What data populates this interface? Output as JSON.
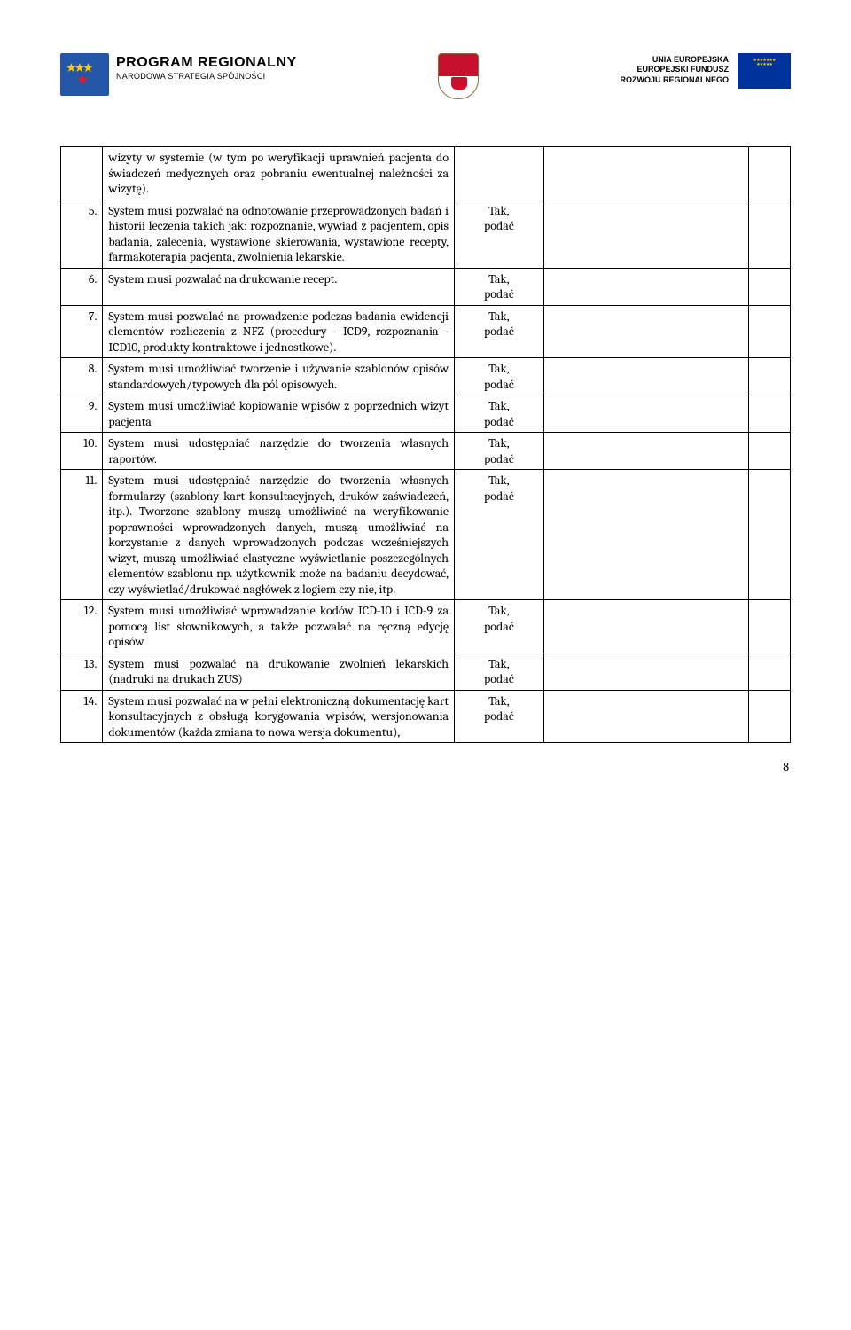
{
  "header": {
    "program_title": "PROGRAM REGIONALNY",
    "program_sub": "NARODOWA STRATEGIA SPÓJNOŚCI",
    "eu_line1": "UNIA EUROPEJSKA",
    "eu_line2": "EUROPEJSKI FUNDUSZ",
    "eu_line3": "ROZWOJU REGIONALNEGO"
  },
  "rows": [
    {
      "num": "",
      "desc": "wizyty w systemie (w tym po weryfikacji uprawnień pacjenta do świadczeń medycznych oraz pobraniu ewentualnej należności za wizytę).",
      "val": ""
    },
    {
      "num": "5.",
      "desc": "System musi pozwalać na odnotowanie przeprowadzonych badań i historii leczenia takich jak: rozpoznanie, wywiad z pacjentem, opis badania, zalecenia, wystawione skierowania, wystawione recepty, farmakoterapia pacjenta, zwolnienia lekarskie.",
      "val": "Tak, podać"
    },
    {
      "num": "6.",
      "desc": "System musi pozwalać na drukowanie recept.",
      "val": "Tak, podać"
    },
    {
      "num": "7.",
      "desc": "System musi pozwalać na prowadzenie podczas badania ewidencji elementów rozliczenia z NFZ (procedury - ICD9, rozpoznania - ICD10, produkty kontraktowe i jednostkowe).",
      "val": "Tak, podać"
    },
    {
      "num": "8.",
      "desc": "System musi umożliwiać tworzenie i używanie szablonów opisów standardowych/typowych dla pól opisowych.",
      "val": "Tak, podać"
    },
    {
      "num": "9.",
      "desc": "System musi umożliwiać kopiowanie wpisów z poprzednich wizyt pacjenta",
      "val": "Tak, podać"
    },
    {
      "num": "10.",
      "desc": "System musi udostępniać narzędzie do tworzenia własnych raportów.",
      "val": "Tak, podać"
    },
    {
      "num": "11.",
      "desc": "System musi udostępniać narzędzie do tworzenia własnych formularzy (szablony kart konsultacyjnych, druków zaświadczeń, itp.). Tworzone szablony muszą umożliwiać na weryfikowanie poprawności wprowadzonych danych, muszą umożliwiać na korzystanie z danych wprowadzonych podczas wcześniejszych wizyt, muszą umożliwiać elastyczne wyświetlanie poszczególnych elementów szablonu np. użytkownik może na badaniu decydować, czy wyświetlać/drukować nagłówek z logiem czy nie, itp.",
      "val": "Tak, podać"
    },
    {
      "num": "12.",
      "desc": "System musi umożliwiać wprowadzanie kodów ICD-10 i ICD-9 za pomocą list słownikowych, a także pozwalać na ręczną edycję opisów",
      "val": "Tak, podać"
    },
    {
      "num": "13.",
      "desc": "System musi pozwalać na drukowanie zwolnień lekarskich (nadruki na drukach ZUS)",
      "val": "Tak, podać"
    },
    {
      "num": "14.",
      "desc": "System musi pozwalać na w pełni elektroniczną dokumentację kart konsultacyjnych z obsługą korygowania wpisów, wersjonowania dokumentów (każda zmiana to nowa wersja dokumentu),",
      "val": "Tak, podać"
    }
  ],
  "page_number": "8"
}
